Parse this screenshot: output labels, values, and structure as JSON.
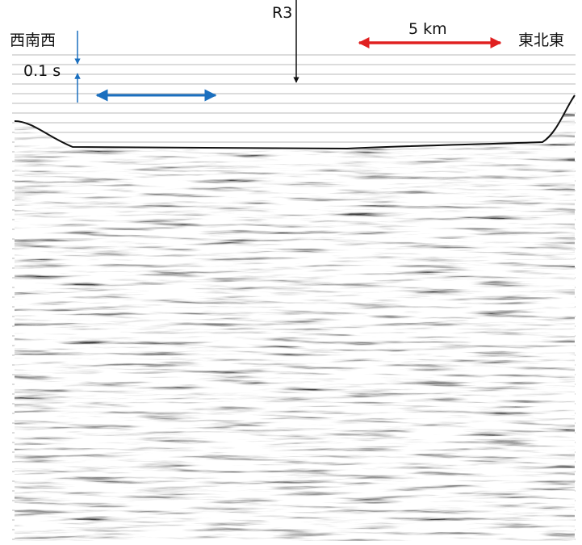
{
  "labels": {
    "west": "西南西",
    "east": "東北東",
    "line": "R3",
    "scale_distance": "5 km",
    "scale_time": "0.1 s"
  }
}
